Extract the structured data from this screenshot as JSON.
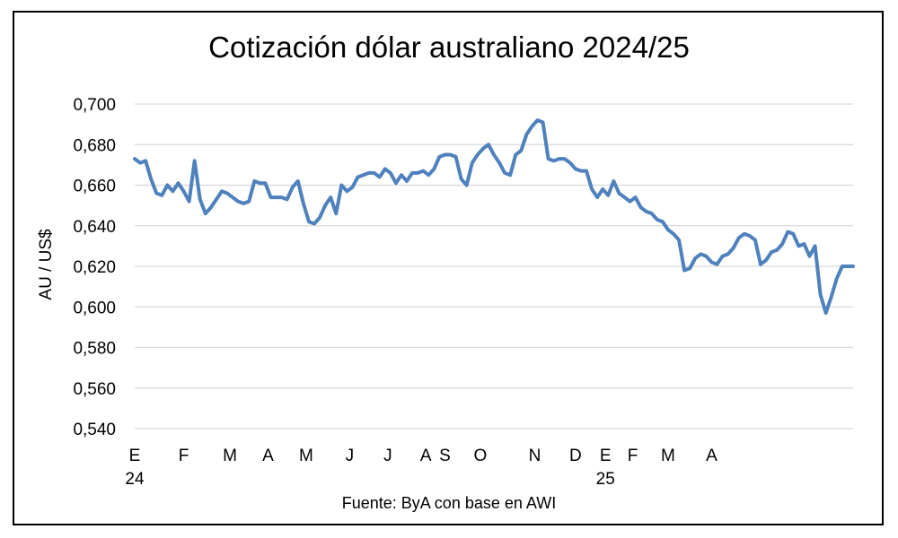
{
  "chart_data": {
    "type": "line",
    "title": "Cotización dólar australiano 2024/25",
    "ylabel": "AU / US$",
    "xlabel": "",
    "source": "Fuente: ByA con base en AWI",
    "ylim": [
      0.54,
      0.7
    ],
    "yticks": [
      "0,700",
      "0,680",
      "0,660",
      "0,640",
      "0,620",
      "0,600",
      "0,580",
      "0,560",
      "0,540"
    ],
    "ytick_values": [
      0.7,
      0.68,
      0.66,
      0.64,
      0.62,
      0.6,
      0.58,
      0.56,
      0.54
    ],
    "xlim": [
      0,
      132
    ],
    "x_month_labels": [
      {
        "label": "E",
        "year": "24",
        "x": 0
      },
      {
        "label": "F",
        "x": 9
      },
      {
        "label": "M",
        "x": 17.5
      },
      {
        "label": "A",
        "x": 24.5
      },
      {
        "label": "M",
        "x": 31.5
      },
      {
        "label": "J",
        "x": 39.5
      },
      {
        "label": "J",
        "x": 46.5
      },
      {
        "label": "A",
        "x": 53.5
      },
      {
        "label": "S",
        "x": 57
      },
      {
        "label": "O",
        "x": 63.5
      },
      {
        "label": "N",
        "x": 73.5
      },
      {
        "label": "D",
        "x": 81
      },
      {
        "label": "E",
        "year": "25",
        "x": 86.5
      },
      {
        "label": "F",
        "x": 91.5
      },
      {
        "label": "M",
        "x": 98
      },
      {
        "label": "A",
        "x": 106
      }
    ],
    "grid": "horizontal",
    "line_color": "#4f81bd",
    "series": [
      {
        "x": [
          0,
          1,
          2,
          3,
          4,
          5,
          6,
          7,
          8,
          9,
          10,
          11,
          12,
          13,
          14,
          15,
          16,
          17,
          18,
          19,
          20,
          21,
          22,
          23,
          24,
          25,
          26,
          27,
          28,
          29,
          30,
          31,
          32,
          33,
          34,
          35,
          36,
          37,
          38,
          39,
          40,
          41,
          42,
          43,
          44,
          45,
          46,
          47,
          48,
          49,
          50,
          51,
          52,
          53,
          54,
          55,
          56,
          57,
          58,
          59,
          60,
          61,
          62,
          63,
          64,
          65,
          66,
          67,
          68,
          69,
          70,
          71,
          72,
          73,
          74,
          75,
          76,
          77,
          78,
          79,
          80,
          81,
          82,
          83,
          84,
          85,
          86,
          87,
          88,
          89,
          90,
          91,
          92,
          93,
          94,
          95,
          96,
          97,
          98,
          99,
          100,
          101,
          102,
          103,
          104,
          105,
          106,
          107,
          108,
          109,
          110,
          111,
          112,
          113,
          114,
          115,
          116,
          117,
          118,
          119,
          120,
          121,
          122,
          123,
          124,
          125,
          126,
          127,
          128,
          129,
          130,
          131,
          132
        ],
        "values": [
          0.673,
          0.671,
          0.672,
          0.663,
          0.656,
          0.655,
          0.66,
          0.657,
          0.661,
          0.657,
          0.652,
          0.672,
          0.653,
          0.646,
          0.649,
          0.653,
          0.657,
          0.656,
          0.654,
          0.652,
          0.651,
          0.652,
          0.662,
          0.661,
          0.661,
          0.654,
          0.654,
          0.654,
          0.653,
          0.659,
          0.662,
          0.651,
          0.642,
          0.641,
          0.644,
          0.65,
          0.654,
          0.646,
          0.66,
          0.657,
          0.659,
          0.664,
          0.665,
          0.666,
          0.666,
          0.664,
          0.668,
          0.666,
          0.661,
          0.665,
          0.662,
          0.666,
          0.666,
          0.667,
          0.665,
          0.668,
          0.674,
          0.675,
          0.675,
          0.674,
          0.663,
          0.66,
          0.671,
          0.675,
          0.678,
          0.68,
          0.675,
          0.671,
          0.666,
          0.665,
          0.675,
          0.677,
          0.685,
          0.689,
          0.692,
          0.691,
          0.673,
          0.672,
          0.673,
          0.673,
          0.671,
          0.668,
          0.667,
          0.667,
          0.658,
          0.654,
          0.658,
          0.655,
          0.662,
          0.656,
          0.654,
          0.652,
          0.654,
          0.649,
          0.647,
          0.646,
          0.643,
          0.642,
          0.638,
          0.636,
          0.633,
          0.618,
          0.619,
          0.624,
          0.626,
          0.625,
          0.622,
          0.621,
          0.625,
          0.626,
          0.629,
          0.634,
          0.636,
          0.635,
          0.633,
          0.621,
          0.623,
          0.627,
          0.628,
          0.631,
          0.637,
          0.636,
          0.63,
          0.631,
          0.625,
          0.63,
          0.606,
          0.597,
          0.605,
          0.614,
          0.62,
          0.62,
          0.62
        ]
      }
    ]
  }
}
